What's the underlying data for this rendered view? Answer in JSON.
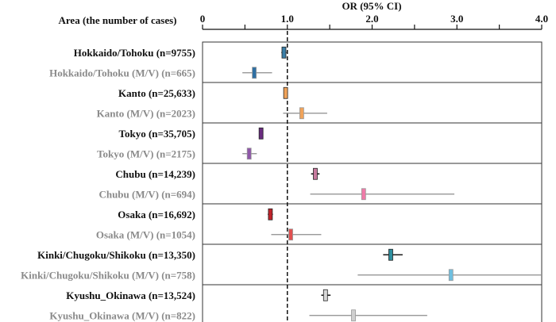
{
  "chart_data": {
    "type": "forest",
    "title": "OR (95% CI)",
    "row_header": "Area (the number of cases)",
    "xlim": [
      0,
      4
    ],
    "xticks": [
      0,
      0.5,
      1.0,
      1.5,
      2.0,
      2.5,
      3.0,
      3.5,
      4.0
    ],
    "xtick_labels": [
      "0",
      "",
      "1.0",
      "",
      "2.0",
      "",
      "3.0",
      "",
      "4.0"
    ],
    "reference_line": 1.0,
    "groups": [
      {
        "name": "Hokkaido/Tohoku",
        "rows": [
          {
            "label": "Hokkaido/Tohoku (n=9755)",
            "type": "all",
            "or": 0.96,
            "lower": 0.93,
            "upper": 0.99,
            "color": "#3b7fa8"
          },
          {
            "label": "Hokkaido/Tohoku (M/V) (n=665)",
            "type": "mv",
            "or": 0.61,
            "lower": 0.47,
            "upper": 0.82,
            "color": "#2f6fa3"
          }
        ]
      },
      {
        "name": "Kanto",
        "rows": [
          {
            "label": "Kanto (n=25,633)",
            "type": "all",
            "or": 0.98,
            "lower": 0.96,
            "upper": 1.0,
            "color": "#f0a35a"
          },
          {
            "label": "Kanto (M/V) (n=2023)",
            "type": "mv",
            "or": 1.17,
            "lower": 0.95,
            "upper": 1.47,
            "color": "#f0a35a"
          }
        ]
      },
      {
        "name": "Tokyo",
        "rows": [
          {
            "label": "Tokyo (n=35,705)",
            "type": "all",
            "or": 0.69,
            "lower": 0.67,
            "upper": 0.71,
            "color": "#6a2c80"
          },
          {
            "label": "Tokyo (M/V) (n=2175)",
            "type": "mv",
            "or": 0.55,
            "lower": 0.47,
            "upper": 0.64,
            "color": "#8e56a8"
          }
        ]
      },
      {
        "name": "Chubu",
        "rows": [
          {
            "label": "Chubu (n=14,239)",
            "type": "all",
            "or": 1.33,
            "lower": 1.28,
            "upper": 1.38,
            "color": "#c77a9e"
          },
          {
            "label": "Chubu (M/V) (n=694)",
            "type": "mv",
            "or": 1.9,
            "lower": 1.27,
            "upper": 2.97,
            "color": "#f07aa8"
          }
        ]
      },
      {
        "name": "Osaka",
        "rows": [
          {
            "label": "Osaka (n=16,692)",
            "type": "all",
            "or": 0.8,
            "lower": 0.77,
            "upper": 0.83,
            "color": "#c0232b"
          },
          {
            "label": "Osaka (M/V) (n=1054)",
            "type": "mv",
            "or": 1.04,
            "lower": 0.81,
            "upper": 1.4,
            "color": "#e05050"
          }
        ]
      },
      {
        "name": "Kinki/Chugoku/Shikoku",
        "rows": [
          {
            "label": "Kinki/Chugoku/Shikoku (n=13,350)",
            "type": "all",
            "or": 2.22,
            "lower": 2.13,
            "upper": 2.36,
            "color": "#2f8f9f"
          },
          {
            "label": "Kinki/Chugoku/Shikoku (M/V) (n=758)",
            "type": "mv",
            "or": 2.93,
            "lower": 1.83,
            "upper": 4.0,
            "color": "#6fbfe0"
          }
        ]
      },
      {
        "name": "Kyushu_Okinawa",
        "rows": [
          {
            "label": "Kyushu_Okinawa (n=13,524)",
            "type": "all",
            "or": 1.45,
            "lower": 1.4,
            "upper": 1.51,
            "color": "#d8d8d8"
          },
          {
            "label": "Kyushu_Okinawa (M/V) (n=822)",
            "type": "mv",
            "or": 1.78,
            "lower": 1.26,
            "upper": 2.65,
            "color": "#d0d0d0"
          }
        ]
      }
    ]
  }
}
